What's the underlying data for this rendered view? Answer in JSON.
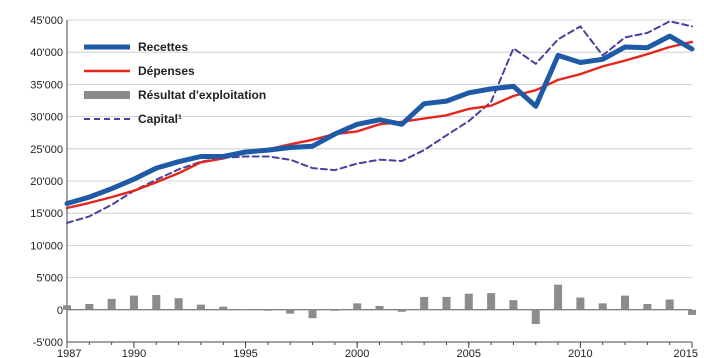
{
  "chart_data": {
    "type": "line",
    "title": "",
    "xlabel": "",
    "ylabel": "",
    "xlim": [
      1987,
      2015
    ],
    "ylim": [
      -5000,
      45000
    ],
    "x_ticks": [
      1987,
      1990,
      1995,
      2000,
      2005,
      2010,
      2015
    ],
    "y_ticks": [
      {
        "value": -5000,
        "label": "-5'000"
      },
      {
        "value": 0,
        "label": "0"
      },
      {
        "value": 5000,
        "label": "5'000"
      },
      {
        "value": 10000,
        "label": "10'000"
      },
      {
        "value": 15000,
        "label": "15'000"
      },
      {
        "value": 20000,
        "label": "20'000"
      },
      {
        "value": 25000,
        "label": "25'000"
      },
      {
        "value": 30000,
        "label": "30'000"
      },
      {
        "value": 35000,
        "label": "35'000"
      },
      {
        "value": 40000,
        "label": "40'000"
      },
      {
        "value": 45000,
        "label": "45'000"
      }
    ],
    "grid": true,
    "legend_position": "top-left",
    "x": [
      1987,
      1988,
      1989,
      1990,
      1991,
      1992,
      1993,
      1994,
      1995,
      1996,
      1997,
      1998,
      1999,
      2000,
      2001,
      2002,
      2003,
      2004,
      2005,
      2006,
      2007,
      2008,
      2009,
      2010,
      2011,
      2012,
      2013,
      2014,
      2015
    ],
    "series": [
      {
        "name": "Recettes",
        "style": "thick-line",
        "color": "#1f5aa6",
        "values": [
          16500,
          17500,
          18800,
          20300,
          22000,
          23000,
          23800,
          23800,
          24500,
          24800,
          25200,
          25400,
          27300,
          28800,
          29500,
          28800,
          32000,
          32400,
          33700,
          34300,
          34700,
          31600,
          39500,
          38400,
          38900,
          40800,
          40700,
          42500,
          40500
        ]
      },
      {
        "name": "Dépenses",
        "style": "line",
        "color": "#e3261c",
        "values": [
          15800,
          16600,
          17500,
          18500,
          19800,
          21200,
          22900,
          23500,
          24500,
          24900,
          25700,
          26400,
          27300,
          27700,
          28800,
          29200,
          29700,
          30200,
          31200,
          31700,
          33200,
          34100,
          35700,
          36600,
          37800,
          38700,
          39700,
          40800,
          41600
        ]
      },
      {
        "name": "Résultat d'exploitation",
        "style": "bar",
        "color": "#8c8c8c",
        "values": [
          700,
          900,
          1700,
          2200,
          2300,
          1800,
          800,
          500,
          100,
          -100,
          -600,
          -1300,
          -100,
          1000,
          600,
          -300,
          2000,
          2000,
          2500,
          2600,
          1500,
          -2200,
          3900,
          1900,
          1000,
          2200,
          900,
          1600,
          -800
        ]
      },
      {
        "name": "Capital¹",
        "style": "dashed-line",
        "color": "#4a3f9a",
        "values": [
          13500,
          14500,
          16300,
          18500,
          20200,
          21800,
          23000,
          23600,
          23800,
          23800,
          23300,
          22000,
          21700,
          22700,
          23300,
          23100,
          24800,
          27100,
          29300,
          32300,
          40600,
          38200,
          42000,
          44000,
          39500,
          42300,
          43000,
          44800,
          44000
        ]
      }
    ]
  }
}
